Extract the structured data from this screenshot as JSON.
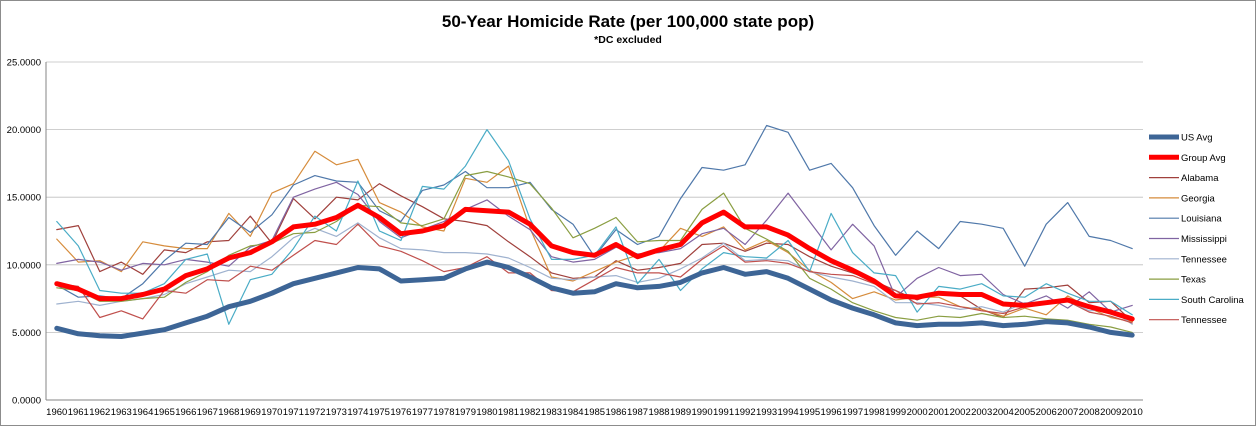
{
  "chart_data": {
    "type": "line",
    "title": "50-Year Homicide Rate (per 100,000 state pop)",
    "subtitle": "*DC excluded",
    "xlabel": "",
    "ylabel": "",
    "ylim": [
      0,
      25
    ],
    "y_ticks": [
      "0.0000",
      "5.0000",
      "10.0000",
      "15.0000",
      "20.0000",
      "25.0000"
    ],
    "y_tick_values": [
      0,
      5,
      10,
      15,
      20,
      25
    ],
    "grid": true,
    "legend_position": "right",
    "x": [
      1960,
      1961,
      1962,
      1963,
      1964,
      1965,
      1966,
      1967,
      1968,
      1969,
      1970,
      1971,
      1972,
      1973,
      1974,
      1975,
      1976,
      1977,
      1978,
      1979,
      1980,
      1981,
      1982,
      1983,
      1984,
      1985,
      1986,
      1987,
      1988,
      1989,
      1990,
      1991,
      1992,
      1993,
      1994,
      1995,
      1996,
      1997,
      1998,
      1999,
      2000,
      2001,
      2002,
      2003,
      2004,
      2005,
      2006,
      2007,
      2008,
      2009,
      2010
    ],
    "series": [
      {
        "name": "US Avg",
        "color": "#3d6596",
        "values": [
          5.3,
          4.9,
          4.75,
          4.7,
          4.95,
          5.2,
          5.7,
          6.2,
          6.9,
          7.3,
          7.9,
          8.6,
          9.0,
          9.4,
          9.8,
          9.7,
          8.8,
          8.9,
          9.0,
          9.7,
          10.2,
          9.8,
          9.1,
          8.3,
          7.9,
          8.0,
          8.6,
          8.3,
          8.4,
          8.7,
          9.4,
          9.8,
          9.3,
          9.5,
          9.0,
          8.2,
          7.4,
          6.8,
          6.3,
          5.7,
          5.5,
          5.6,
          5.6,
          5.7,
          5.5,
          5.6,
          5.8,
          5.7,
          5.4,
          5.0,
          4.8
        ]
      },
      {
        "name": "Group Avg",
        "color": "#ff0000",
        "values": [
          8.6,
          8.2,
          7.5,
          7.5,
          7.8,
          8.2,
          9.2,
          9.7,
          10.5,
          10.9,
          11.7,
          12.8,
          13.0,
          13.5,
          14.4,
          13.5,
          12.3,
          12.5,
          12.9,
          14.1,
          14.0,
          13.9,
          13.0,
          11.4,
          10.9,
          10.7,
          11.5,
          10.6,
          11.1,
          11.5,
          13.1,
          13.9,
          12.8,
          12.8,
          12.2,
          11.2,
          10.3,
          9.6,
          8.8,
          7.7,
          7.6,
          7.9,
          7.8,
          7.8,
          7.1,
          7.0,
          7.2,
          7.4,
          6.9,
          6.5,
          6.0
        ]
      },
      {
        "name": "Alabama",
        "color": "#a0403c",
        "values": [
          12.6,
          12.9,
          9.5,
          10.2,
          9.3,
          11.1,
          10.9,
          11.7,
          11.8,
          13.6,
          11.6,
          14.9,
          13.4,
          15.0,
          14.8,
          16.0,
          15.1,
          14.3,
          13.4,
          13.2,
          12.9,
          11.7,
          10.6,
          9.4,
          9.0,
          9.1,
          10.3,
          9.6,
          9.8,
          10.1,
          11.5,
          11.6,
          11.0,
          11.6,
          11.5,
          10.6,
          9.9,
          9.4,
          8.8,
          8.1,
          7.4,
          8.0,
          7.7,
          6.7,
          6.1,
          8.2,
          8.3,
          8.5,
          7.2,
          7.3,
          5.8
        ]
      },
      {
        "name": "Georgia",
        "color": "#d68c3c",
        "values": [
          11.9,
          10.2,
          10.3,
          9.5,
          11.7,
          11.4,
          11.2,
          11.2,
          13.8,
          12.1,
          15.3,
          16.0,
          18.4,
          17.4,
          17.8,
          14.6,
          13.9,
          12.8,
          12.5,
          16.4,
          16.1,
          17.3,
          12.7,
          9.1,
          8.8,
          9.5,
          10.2,
          10.7,
          11.0,
          12.7,
          12.1,
          12.8,
          11.1,
          11.8,
          10.9,
          9.6,
          8.7,
          7.5,
          8.0,
          7.4,
          7.6,
          7.6,
          6.9,
          6.7,
          6.2,
          6.8,
          6.3,
          7.7,
          6.8,
          6.1,
          5.8
        ]
      },
      {
        "name": "Louisiana",
        "color": "#4f78aa",
        "values": [
          8.5,
          7.6,
          7.7,
          7.5,
          8.6,
          10.3,
          11.6,
          11.5,
          13.5,
          12.4,
          13.7,
          15.9,
          16.6,
          16.2,
          16.1,
          14.0,
          13.2,
          15.5,
          15.9,
          16.9,
          15.7,
          15.7,
          16.1,
          14.1,
          13.0,
          10.6,
          12.6,
          11.5,
          12.1,
          14.9,
          17.2,
          17.0,
          17.4,
          20.3,
          19.8,
          17.0,
          17.5,
          15.7,
          12.9,
          10.7,
          12.5,
          11.2,
          13.2,
          13.0,
          12.7,
          9.9,
          13.0,
          14.6,
          12.1,
          11.8,
          11.2
        ]
      },
      {
        "name": "Mississippi",
        "color": "#8064a2",
        "values": [
          10.1,
          10.4,
          10.2,
          9.6,
          10.1,
          10.0,
          10.4,
          10.2,
          9.9,
          11.3,
          11.8,
          15.0,
          15.6,
          16.1,
          15.2,
          13.2,
          12.0,
          12.6,
          13.2,
          14.1,
          14.8,
          13.6,
          12.6,
          10.6,
          10.2,
          10.4,
          11.3,
          10.8,
          10.9,
          11.2,
          12.3,
          12.7,
          11.5,
          13.3,
          15.3,
          13.2,
          11.1,
          13.0,
          11.4,
          7.6,
          9.0,
          9.8,
          9.2,
          9.3,
          7.8,
          7.1,
          7.7,
          6.8,
          8.0,
          6.5,
          7.0
        ]
      },
      {
        "name": "Tennessee",
        "color": "#9fb2cf",
        "values": [
          7.1,
          7.3,
          7.0,
          7.3,
          7.5,
          7.8,
          8.6,
          9.1,
          9.6,
          9.5,
          10.6,
          12.0,
          12.7,
          12.1,
          13.1,
          12.0,
          11.2,
          11.1,
          10.9,
          10.9,
          10.8,
          10.5,
          9.8,
          9.0,
          8.9,
          9.1,
          9.2,
          8.7,
          9.0,
          9.7,
          10.5,
          11.6,
          10.3,
          10.4,
          10.3,
          9.5,
          9.1,
          8.8,
          8.4,
          7.2,
          7.2,
          7.0,
          6.7,
          6.9,
          6.5,
          7.2,
          7.1,
          7.3,
          6.6,
          6.7,
          5.6
        ]
      },
      {
        "name": "Texas",
        "color": "#8a9e42",
        "values": [
          8.3,
          8.1,
          7.3,
          7.3,
          7.5,
          7.6,
          8.7,
          9.5,
          10.7,
          11.4,
          11.6,
          12.3,
          12.4,
          13.2,
          14.4,
          14.3,
          13.1,
          12.9,
          13.4,
          16.6,
          16.9,
          16.5,
          16.0,
          14.2,
          12.0,
          12.7,
          13.5,
          11.7,
          11.8,
          11.8,
          14.1,
          15.3,
          12.7,
          11.9,
          11.0,
          9.0,
          8.2,
          7.2,
          6.6,
          6.1,
          5.9,
          6.2,
          6.1,
          6.4,
          6.1,
          6.2,
          6.0,
          5.9,
          5.6,
          5.4,
          5.0
        ]
      },
      {
        "name": "South Carolina",
        "color": "#4aacc6",
        "values": [
          13.2,
          11.4,
          8.1,
          7.9,
          7.9,
          8.6,
          10.4,
          10.8,
          5.6,
          8.9,
          9.3,
          11.2,
          13.6,
          12.5,
          16.2,
          12.5,
          11.8,
          15.8,
          15.6,
          17.3,
          20.0,
          17.7,
          13.4,
          10.4,
          10.4,
          10.7,
          12.8,
          8.6,
          10.4,
          8.1,
          9.7,
          10.9,
          10.6,
          10.5,
          11.8,
          9.5,
          13.8,
          10.9,
          9.4,
          9.2,
          6.5,
          8.4,
          8.2,
          8.6,
          7.7,
          7.6,
          8.6,
          7.9,
          7.3,
          7.3,
          6.3
        ]
      },
      {
        "name": "Tennessee",
        "color": "#c0504d",
        "values": [
          8.6,
          8.4,
          6.1,
          6.6,
          6.0,
          8.1,
          7.9,
          8.9,
          8.8,
          9.9,
          9.6,
          10.7,
          11.8,
          11.5,
          13.0,
          11.4,
          11.0,
          10.3,
          9.5,
          9.8,
          10.6,
          9.4,
          9.4,
          8.1,
          8.0,
          8.9,
          9.8,
          9.4,
          9.4,
          9.1,
          10.4,
          11.4,
          10.2,
          10.3,
          10.1,
          9.5,
          9.3,
          9.2,
          8.6,
          8.1,
          7.1,
          7.2,
          6.9,
          6.6,
          6.4,
          6.9,
          7.2,
          7.3,
          6.5,
          6.2,
          5.7
        ]
      }
    ]
  }
}
